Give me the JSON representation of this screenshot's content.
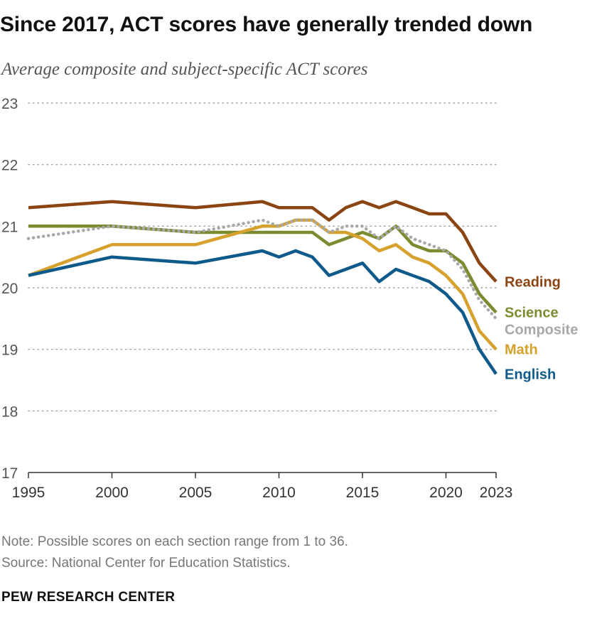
{
  "header": {
    "title": "Since 2017, ACT scores have generally trended down",
    "subtitle": "Average composite and subject-specific ACT scores"
  },
  "footer": {
    "note": "Note: Possible scores on each section range from 1 to 36.",
    "source": "Source: National Center for Education Statistics.",
    "brand": "PEW RESEARCH CENTER"
  },
  "colors": {
    "reading": "#8b4513",
    "science": "#7a8c2f",
    "composite": "#a8a8a8",
    "math": "#d6a12c",
    "english": "#0e5a8a",
    "grid": "#a0a0a0",
    "axis": "#333333"
  },
  "chart_data": {
    "type": "line",
    "title": "Since 2017, ACT scores have generally trended down",
    "subtitle": "Average composite and subject-specific ACT scores",
    "xlabel": "",
    "ylabel": "",
    "xlim": [
      1995,
      2023
    ],
    "ylim": [
      17,
      23
    ],
    "x_ticks": [
      1995,
      2000,
      2005,
      2010,
      2015,
      2020,
      2023
    ],
    "y_ticks": [
      17,
      18,
      19,
      20,
      21,
      22,
      23
    ],
    "grid": "horizontal dotted",
    "legend": "direct labels at line ends (right)",
    "x": [
      1995,
      2000,
      2005,
      2009,
      2010,
      2011,
      2012,
      2013,
      2014,
      2015,
      2016,
      2017,
      2018,
      2019,
      2020,
      2021,
      2022,
      2023
    ],
    "series": [
      {
        "name": "Reading",
        "color": "#8b4513",
        "style": "solid",
        "values": [
          21.3,
          21.4,
          21.3,
          21.4,
          21.3,
          21.3,
          21.3,
          21.1,
          21.3,
          21.4,
          21.3,
          21.4,
          21.3,
          21.2,
          21.2,
          20.9,
          20.4,
          20.1
        ]
      },
      {
        "name": "Science",
        "color": "#7a8c2f",
        "style": "solid",
        "values": [
          21.0,
          21.0,
          20.9,
          20.9,
          20.9,
          20.9,
          20.9,
          20.7,
          20.8,
          20.9,
          20.8,
          21.0,
          20.7,
          20.6,
          20.6,
          20.4,
          19.9,
          19.6
        ]
      },
      {
        "name": "Composite",
        "color": "#a8a8a8",
        "style": "dotted",
        "values": [
          20.8,
          21.0,
          20.9,
          21.1,
          21.0,
          21.1,
          21.1,
          20.9,
          21.0,
          21.0,
          20.8,
          21.0,
          20.8,
          20.7,
          20.6,
          20.3,
          19.8,
          19.5
        ]
      },
      {
        "name": "Math",
        "color": "#d6a12c",
        "style": "solid",
        "values": [
          20.2,
          20.7,
          20.7,
          21.0,
          21.0,
          21.1,
          21.1,
          20.9,
          20.9,
          20.8,
          20.6,
          20.7,
          20.5,
          20.4,
          20.2,
          19.9,
          19.3,
          19.0
        ]
      },
      {
        "name": "English",
        "color": "#0e5a8a",
        "style": "solid",
        "values": [
          20.2,
          20.5,
          20.4,
          20.6,
          20.5,
          20.6,
          20.5,
          20.2,
          20.3,
          20.4,
          20.1,
          20.3,
          20.2,
          20.1,
          19.9,
          19.6,
          19.0,
          18.6
        ]
      }
    ]
  }
}
